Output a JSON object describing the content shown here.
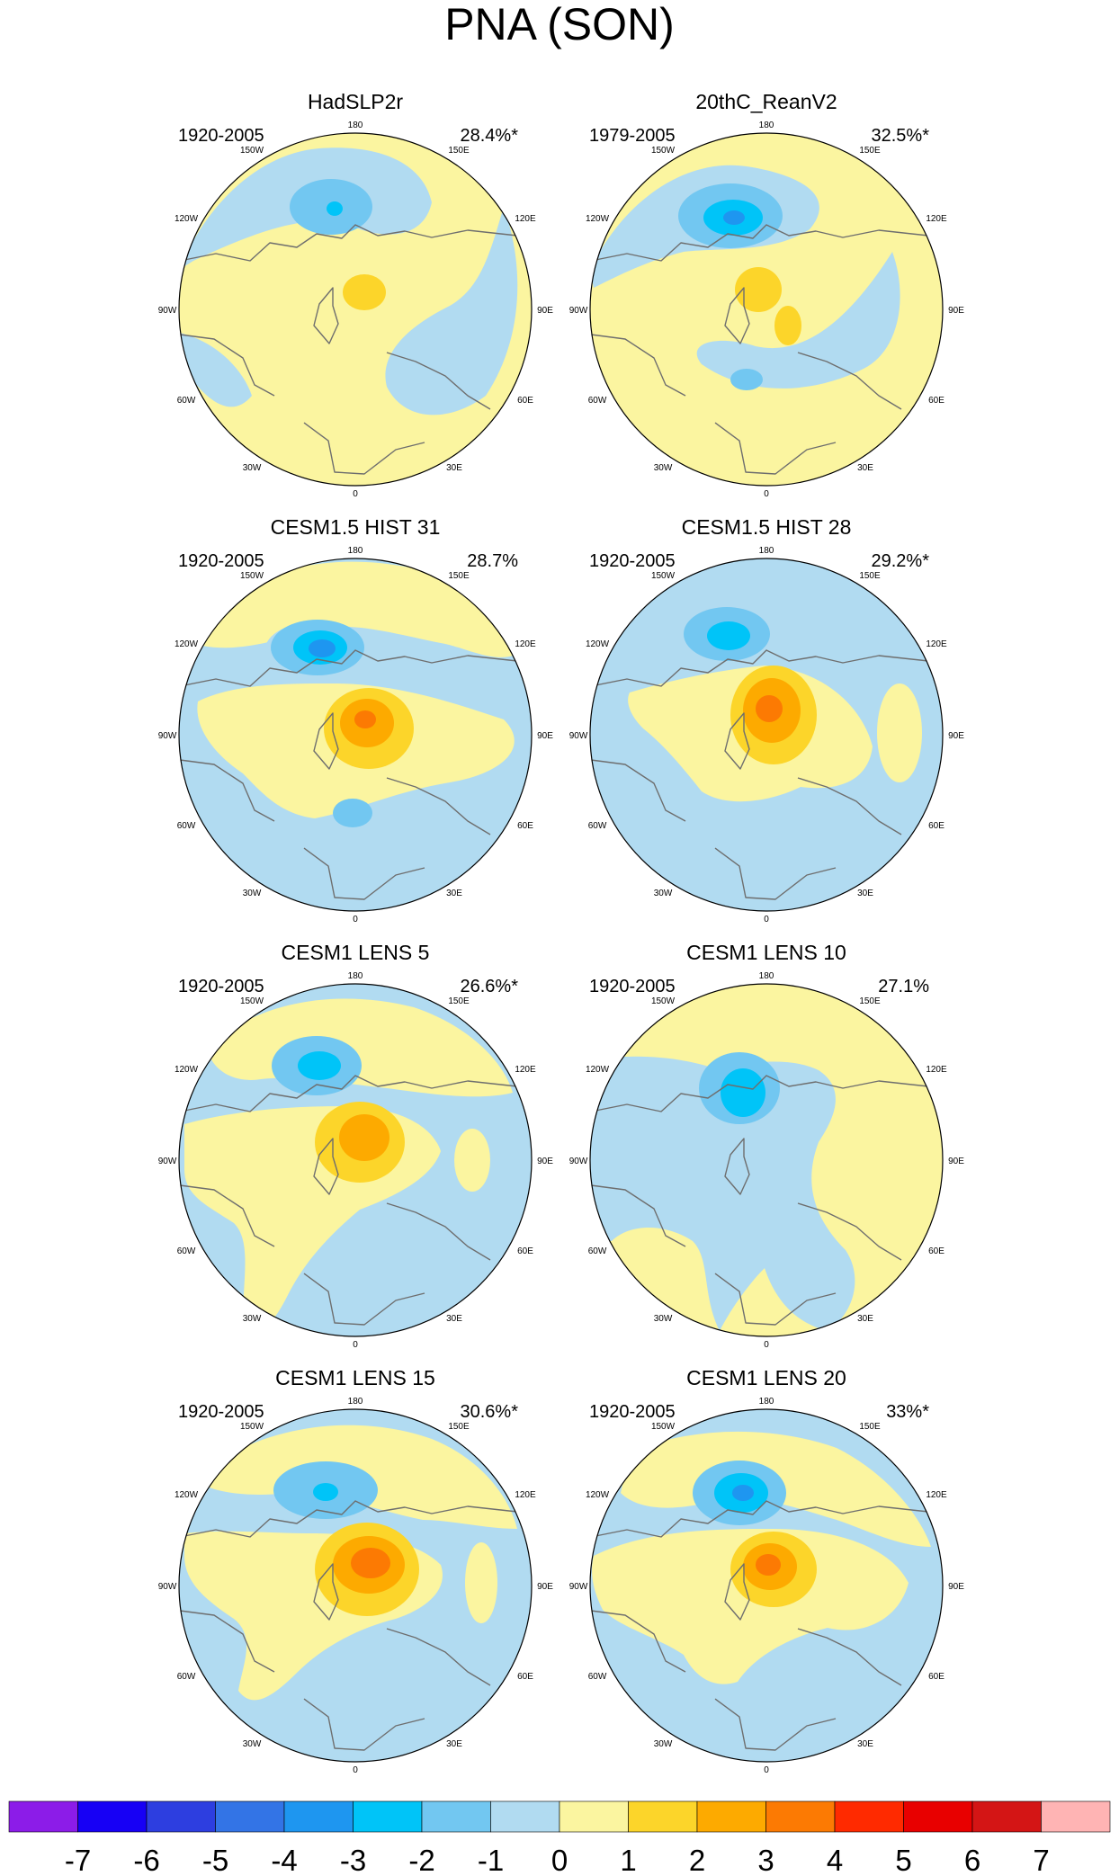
{
  "chart_data": {
    "type": "polar-contour-map",
    "title": "PNA (SON)",
    "colormap": {
      "levels": [
        "-7",
        "-6",
        "-5",
        "-4",
        "-3",
        "-2",
        "-1",
        "0",
        "1",
        "2",
        "3",
        "4",
        "5",
        "6",
        "7"
      ],
      "colors": [
        "#8c1ce8",
        "#1700f5",
        "#2d3ee0",
        "#3374e6",
        "#1e96f0",
        "#00c4f8",
        "#72c7f1",
        "#b1dbf1",
        "#fbf5a0",
        "#fcd52a",
        "#fdaa00",
        "#fc7a03",
        "#ff2a00",
        "#e80000",
        "#d41515",
        "#ffb4b4"
      ]
    },
    "longitude_labels": [
      "180",
      "150W",
      "150E",
      "120W",
      "120E",
      "90W",
      "90E",
      "60W",
      "60E",
      "30W",
      "30E",
      "0"
    ],
    "panels": [
      {
        "title": "HadSLP2r",
        "period": "1920-2005",
        "variance": "28.4%*",
        "neg_min": -3,
        "pos_max": 2
      },
      {
        "title": "20thC_ReanV2",
        "period": "1979-2005",
        "variance": "32.5%*",
        "neg_min": -4,
        "pos_max": 2
      },
      {
        "title": "CESM1.5 HIST 31",
        "period": "1920-2005",
        "variance": "28.7%",
        "neg_min": -4,
        "pos_max": 4
      },
      {
        "title": "CESM1.5 HIST 28",
        "period": "1920-2005",
        "variance": "29.2%*",
        "neg_min": -3,
        "pos_max": 4
      },
      {
        "title": "CESM1 LENS 5",
        "period": "1920-2005",
        "variance": "26.6%*",
        "neg_min": -3,
        "pos_max": 3
      },
      {
        "title": "CESM1 LENS 10",
        "period": "1920-2005",
        "variance": "27.1%",
        "neg_min": -3,
        "pos_max": 1
      },
      {
        "title": "CESM1 LENS 15",
        "period": "1920-2005",
        "variance": "30.6%*",
        "neg_min": -3,
        "pos_max": 4
      },
      {
        "title": "CESM1 LENS 20",
        "period": "1920-2005",
        "variance": "33%*",
        "neg_min": -4,
        "pos_max": 4
      }
    ]
  }
}
